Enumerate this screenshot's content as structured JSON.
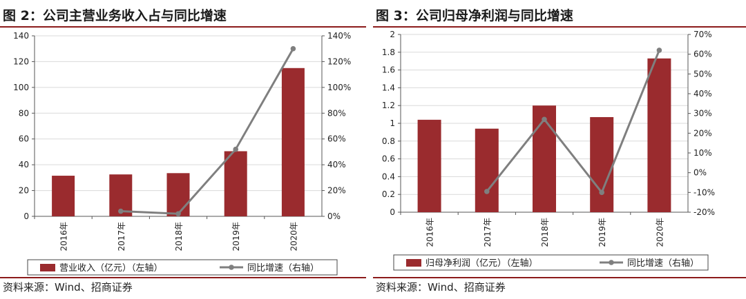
{
  "charts": [
    {
      "fig_title": "图 2：公司主营业务收入占与同比增速",
      "source": "资料来源：Wind、招商证券",
      "colors": {
        "bar": "#9a2b2e",
        "line": "#7f7f7f",
        "grid": "#d9d9d9",
        "rule": "#8b1a1a"
      },
      "chart_data": {
        "type": "bar+line",
        "categories": [
          "2016年",
          "2017年",
          "2018年",
          "2019年",
          "2020年"
        ],
        "series": [
          {
            "name": "营业收入（亿元）（左轴）",
            "type": "bar",
            "axis": "left",
            "values": [
              31.5,
              32.5,
              33.5,
              50.5,
              115
            ]
          },
          {
            "name": "同比增速（右轴）",
            "type": "line",
            "axis": "right",
            "values": [
              null,
              4,
              2,
              52,
              130
            ]
          }
        ],
        "left_axis": {
          "min": 0,
          "max": 140,
          "step": 20,
          "ticks": [
            "0",
            "20",
            "40",
            "60",
            "80",
            "100",
            "120",
            "140"
          ]
        },
        "right_axis": {
          "min": 0,
          "max": 140,
          "step": 20,
          "unit": "%",
          "ticks": [
            "0%",
            "20%",
            "40%",
            "60%",
            "80%",
            "100%",
            "120%",
            "140%"
          ]
        },
        "grid": true,
        "legend_position": "bottom"
      }
    },
    {
      "fig_title": "图 3：公司归母净利润与同比增速",
      "source": "资料来源：Wind、招商证券",
      "colors": {
        "bar": "#9a2b2e",
        "line": "#7f7f7f",
        "grid": "#d9d9d9",
        "rule": "#8b1a1a"
      },
      "chart_data": {
        "type": "bar+line",
        "categories": [
          "2016年",
          "2017年",
          "2018年",
          "2019年",
          "2020年"
        ],
        "series": [
          {
            "name": "归母净利润（亿元）（左轴）",
            "type": "bar",
            "axis": "left",
            "values": [
              1.04,
              0.94,
              1.2,
              1.07,
              1.73
            ]
          },
          {
            "name": "同比增速（右轴）",
            "type": "line",
            "axis": "right",
            "values": [
              null,
              -9.5,
              27,
              -10,
              62
            ]
          }
        ],
        "left_axis": {
          "min": 0,
          "max": 2,
          "step": 0.2,
          "ticks": [
            "0",
            "0.2",
            "0.4",
            "0.6",
            "0.8",
            "1",
            "1.2",
            "1.4",
            "1.6",
            "1.8",
            "2"
          ]
        },
        "right_axis": {
          "min": -20,
          "max": 70,
          "step": 10,
          "unit": "%",
          "ticks": [
            "-20%",
            "-10%",
            "0%",
            "10%",
            "20%",
            "30%",
            "40%",
            "50%",
            "60%",
            "70%"
          ]
        },
        "grid": true,
        "legend_position": "bottom"
      }
    }
  ]
}
